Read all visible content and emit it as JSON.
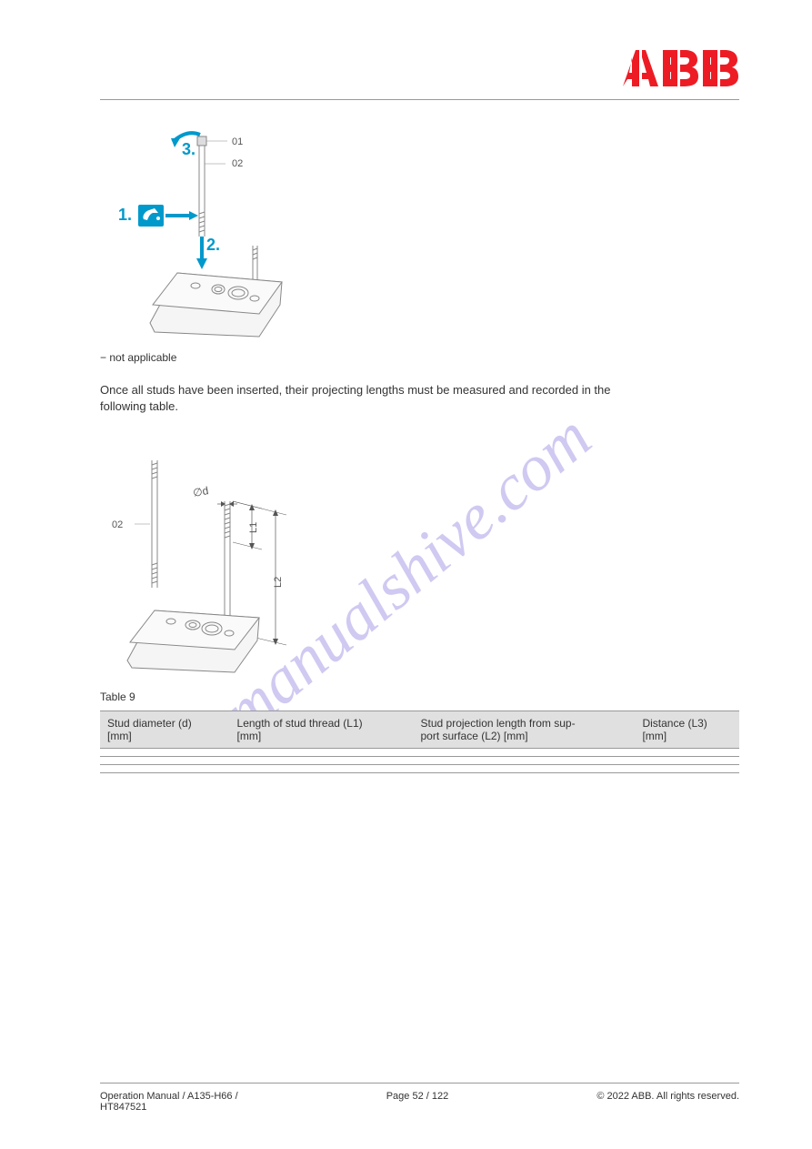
{
  "watermark": "manualshive.com",
  "logo": {
    "brand": "ABB",
    "color": "#ED1C24"
  },
  "figure1": {
    "caption_note": "− not applicable",
    "labels": {
      "l01": "01",
      "l02": "02"
    },
    "steps": {
      "s1": "1.",
      "s2": "2.",
      "s3": "3."
    },
    "step_color": "#0099cc",
    "oil_icon_bg": "#0099cc"
  },
  "description1": "Once all studs have been inserted, their projecting lengths must be measured and recorded in the following table.",
  "figure2": {
    "labels": {
      "l02": "02",
      "diameter": "∅d",
      "L1": "L1",
      "L2": "L2"
    }
  },
  "table": {
    "number": "Table 9",
    "headers": {
      "c1": "Stud diameter (d)\n[mm]",
      "c2": "Length of stud thread (L1)\n[mm]",
      "c3": "Stud projection length from sup-\nport surface (L2) [mm]",
      "c4": "Distance (L3)\n[mm]"
    },
    "rows": [
      {
        "c1": "",
        "c2": "",
        "c3": "",
        "c4": ""
      },
      {
        "c1": "",
        "c2": "",
        "c3": "",
        "c4": ""
      },
      {
        "c1": "",
        "c2": "",
        "c3": "",
        "c4": ""
      }
    ]
  },
  "footer": {
    "left": "Operation Manual / A135-H66 /\nHT847521",
    "center_label": "Page",
    "center_value": "52 / 122",
    "right": "© 2022 ABB. All rights reserved."
  }
}
